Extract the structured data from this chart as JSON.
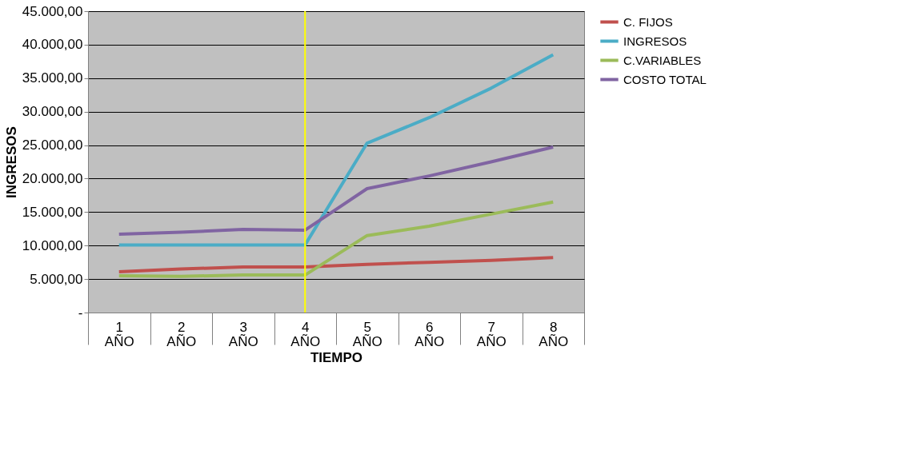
{
  "chart_data": {
    "type": "line",
    "xlabel": "TIEMPO",
    "ylabel": "INGRESOS",
    "categories": [
      "1 AÑO",
      "2 AÑO",
      "3 AÑO",
      "4 AÑO",
      "5 AÑO",
      "6 AÑO",
      "7 AÑO",
      "8 AÑO"
    ],
    "series": [
      {
        "name": "C. FIJOS",
        "color": "#c0504d",
        "values": [
          6100,
          6500,
          6800,
          6800,
          7200,
          7500,
          7800,
          8200
        ]
      },
      {
        "name": "INGRESOS",
        "color": "#4bacc6",
        "values": [
          10100,
          10100,
          10100,
          10100,
          25300,
          29100,
          33500,
          38500
        ]
      },
      {
        "name": "C.VARIABLES",
        "color": "#9bbb59",
        "values": [
          5500,
          5400,
          5600,
          5600,
          11500,
          12900,
          14700,
          16500
        ]
      },
      {
        "name": "COSTO TOTAL",
        "color": "#8064a2",
        "values": [
          11700,
          12000,
          12400,
          12300,
          18500,
          20400,
          22500,
          24700
        ]
      }
    ],
    "ylim": [
      0,
      45000
    ],
    "yticks": [
      {
        "value": 0,
        "label": "-"
      },
      {
        "value": 5000,
        "label": "5.000,00"
      },
      {
        "value": 10000,
        "label": "10.000,00"
      },
      {
        "value": 15000,
        "label": "15.000,00"
      },
      {
        "value": 20000,
        "label": "20.000,00"
      },
      {
        "value": 25000,
        "label": "25.000,00"
      },
      {
        "value": 30000,
        "label": "30.000,00"
      },
      {
        "value": 35000,
        "label": "35.000,00"
      },
      {
        "value": 40000,
        "label": "40.000,00"
      },
      {
        "value": 45000,
        "label": "45.000,00"
      }
    ],
    "ref_lines": [
      {
        "axis": "x",
        "value": "4 AÑO",
        "color": "#ffff00"
      }
    ],
    "grid": "y",
    "legend": "right",
    "marker": "none",
    "line_style": "solid"
  }
}
